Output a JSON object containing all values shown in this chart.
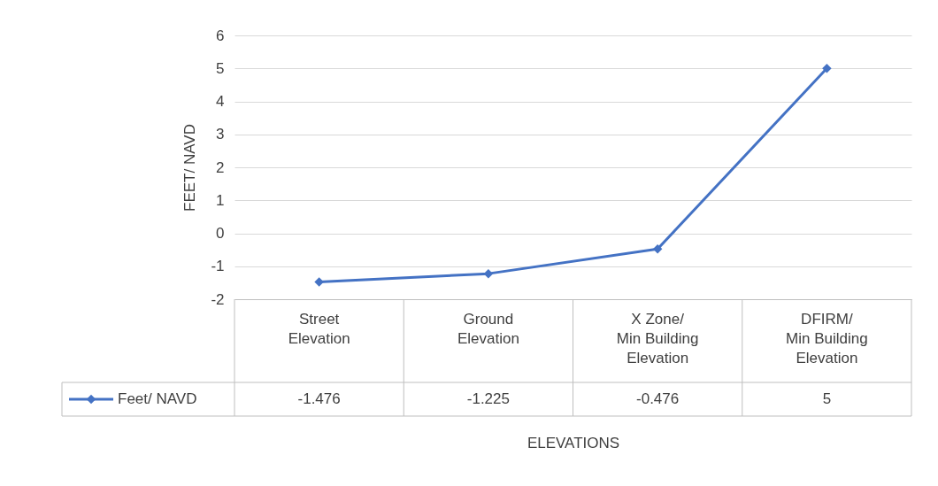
{
  "chart_data": {
    "type": "line",
    "xlabel": "ELEVATIONS",
    "ylabel": "FEET/ NAVD",
    "categories": [
      "Street Elevation",
      "Ground Elevation",
      "X Zone/ Min Building Elevation",
      "DFIRM/ Min Building Elevation"
    ],
    "series": [
      {
        "name": "Feet/ NAVD",
        "color": "#4472c4",
        "values": [
          -1.476,
          -1.225,
          -0.476,
          5
        ]
      }
    ],
    "ylim": [
      -2,
      6
    ],
    "yticks": [
      -2,
      -1,
      0,
      1,
      2,
      3,
      4,
      5,
      6
    ],
    "grid": "y",
    "legend": "bottom left",
    "marker": "diamond",
    "line_style": "solid",
    "data_labels": true
  }
}
